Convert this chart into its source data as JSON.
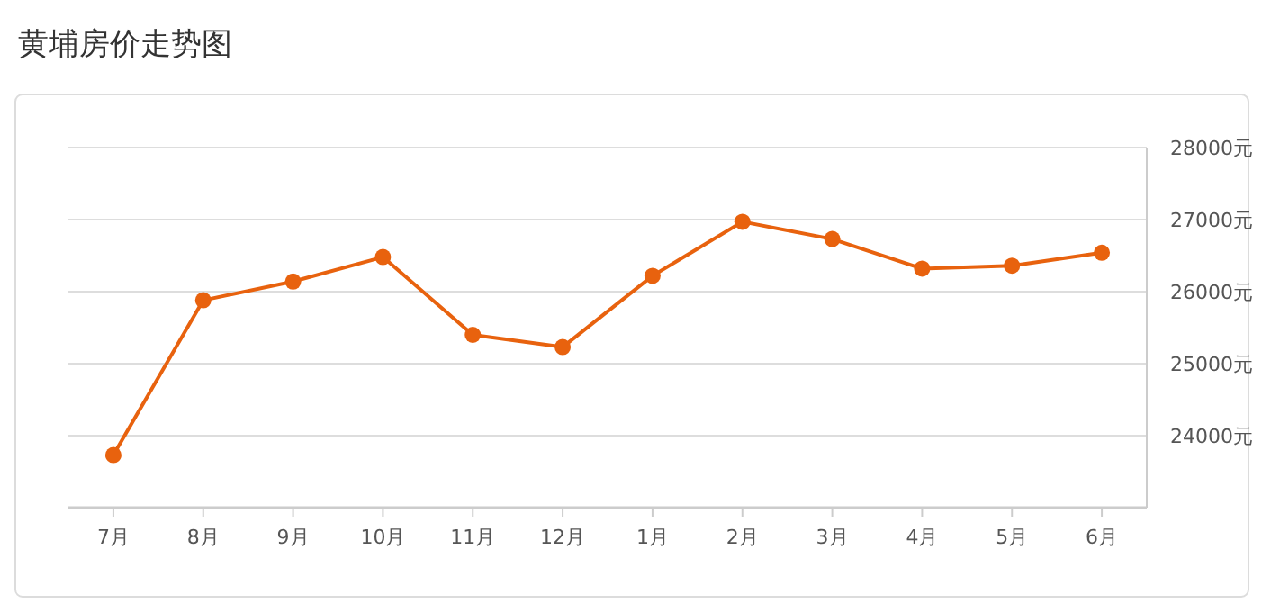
{
  "chart_data": {
    "type": "line",
    "title": "黄埔房价走势图",
    "categories": [
      "7月",
      "8月",
      "9月",
      "10月",
      "11月",
      "12月",
      "1月",
      "2月",
      "3月",
      "4月",
      "5月",
      "6月"
    ],
    "series": [
      {
        "color": "#e8620e",
        "values": [
          23730,
          25880,
          26140,
          26480,
          25400,
          25230,
          26220,
          26970,
          26730,
          26320,
          26360,
          26540
        ]
      }
    ],
    "ylim": [
      23000,
      28000
    ],
    "yticks": [
      {
        "value": 24000,
        "label": "24000元"
      },
      {
        "value": 25000,
        "label": "25000元"
      },
      {
        "value": 26000,
        "label": "26000元"
      },
      {
        "value": 27000,
        "label": "27000元"
      },
      {
        "value": 28000,
        "label": "28000元"
      }
    ],
    "grid": "y",
    "marker": "circle",
    "line_style": "solid"
  }
}
